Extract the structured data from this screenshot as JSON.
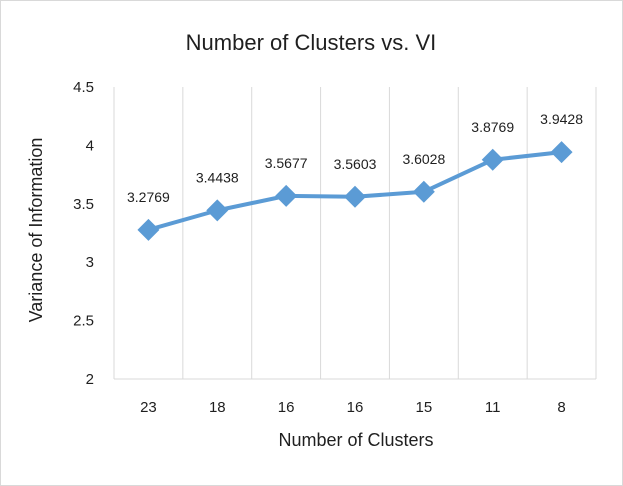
{
  "chart_data": {
    "type": "line",
    "title": "Number of Clusters vs. VI",
    "xlabel": "Number of Clusters",
    "ylabel": "Variance of Information",
    "categories": [
      "23",
      "18",
      "16",
      "16",
      "15",
      "11",
      "8"
    ],
    "series": [
      {
        "values": [
          3.2769,
          3.4438,
          3.5677,
          3.5603,
          3.6028,
          3.8769,
          3.9428
        ],
        "labels": [
          "3.2769",
          "3.4438",
          "3.5677",
          "3.5603",
          "3.6028",
          "3.8769",
          "3.9428"
        ],
        "color": "#5b9bd5",
        "marker": "diamond"
      }
    ],
    "ylim": [
      2,
      4.5
    ],
    "yticks": [
      "2",
      "2.5",
      "3",
      "3.5",
      "4",
      "4.5"
    ],
    "ytick_values": [
      2,
      2.5,
      3,
      3.5,
      4,
      4.5
    ],
    "grid": "vertical",
    "legend": "none",
    "grid_color": "#d9d9d9"
  }
}
